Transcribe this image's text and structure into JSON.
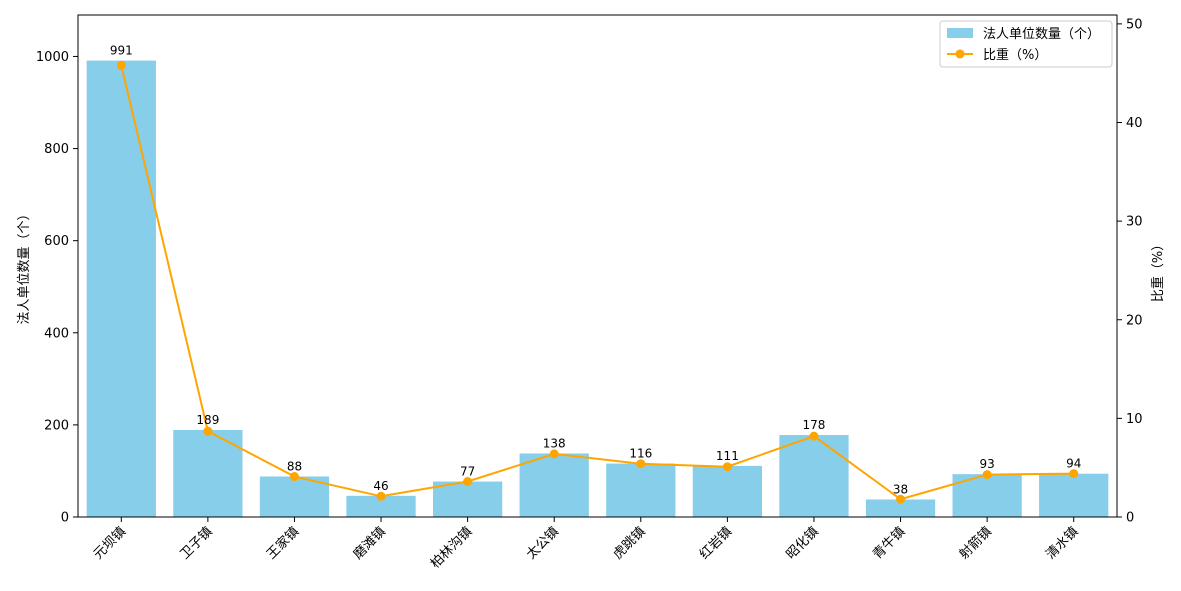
{
  "chart_data": {
    "type": "bar",
    "categories": [
      "元坝镇",
      "卫子镇",
      "王家镇",
      "磨滩镇",
      "柏林沟镇",
      "太公镇",
      "虎跳镇",
      "红岩镇",
      "昭化镇",
      "青牛镇",
      "射箭镇",
      "清水镇"
    ],
    "series": [
      {
        "name": "法人单位数量（个）",
        "type": "bar",
        "axis": "left",
        "color": "#87CEEB",
        "values": [
          991,
          189,
          88,
          46,
          77,
          138,
          116,
          111,
          178,
          38,
          93,
          94
        ]
      },
      {
        "name": "比重（%）",
        "type": "line",
        "axis": "right",
        "color": "#FFA500",
        "values": [
          45.8,
          8.7,
          4.1,
          2.1,
          3.6,
          6.4,
          5.4,
          5.1,
          8.2,
          1.8,
          4.3,
          4.4
        ]
      }
    ],
    "data_labels": [
      "991",
      "189",
      "88",
      "46",
      "77",
      "138",
      "116",
      "111",
      "178",
      "38",
      "93",
      "94"
    ],
    "ylabel": "法人单位数量（个）",
    "y2label": "比重（%）",
    "ylim": [
      0,
      1090
    ],
    "y2lim": [
      0,
      50.9
    ],
    "yticks": [
      0,
      200,
      400,
      600,
      800,
      1000
    ],
    "y2ticks": [
      0,
      10,
      20,
      30,
      40,
      50
    ],
    "xtick_rotation": 45,
    "legend_position": "top-right",
    "grid": false
  }
}
